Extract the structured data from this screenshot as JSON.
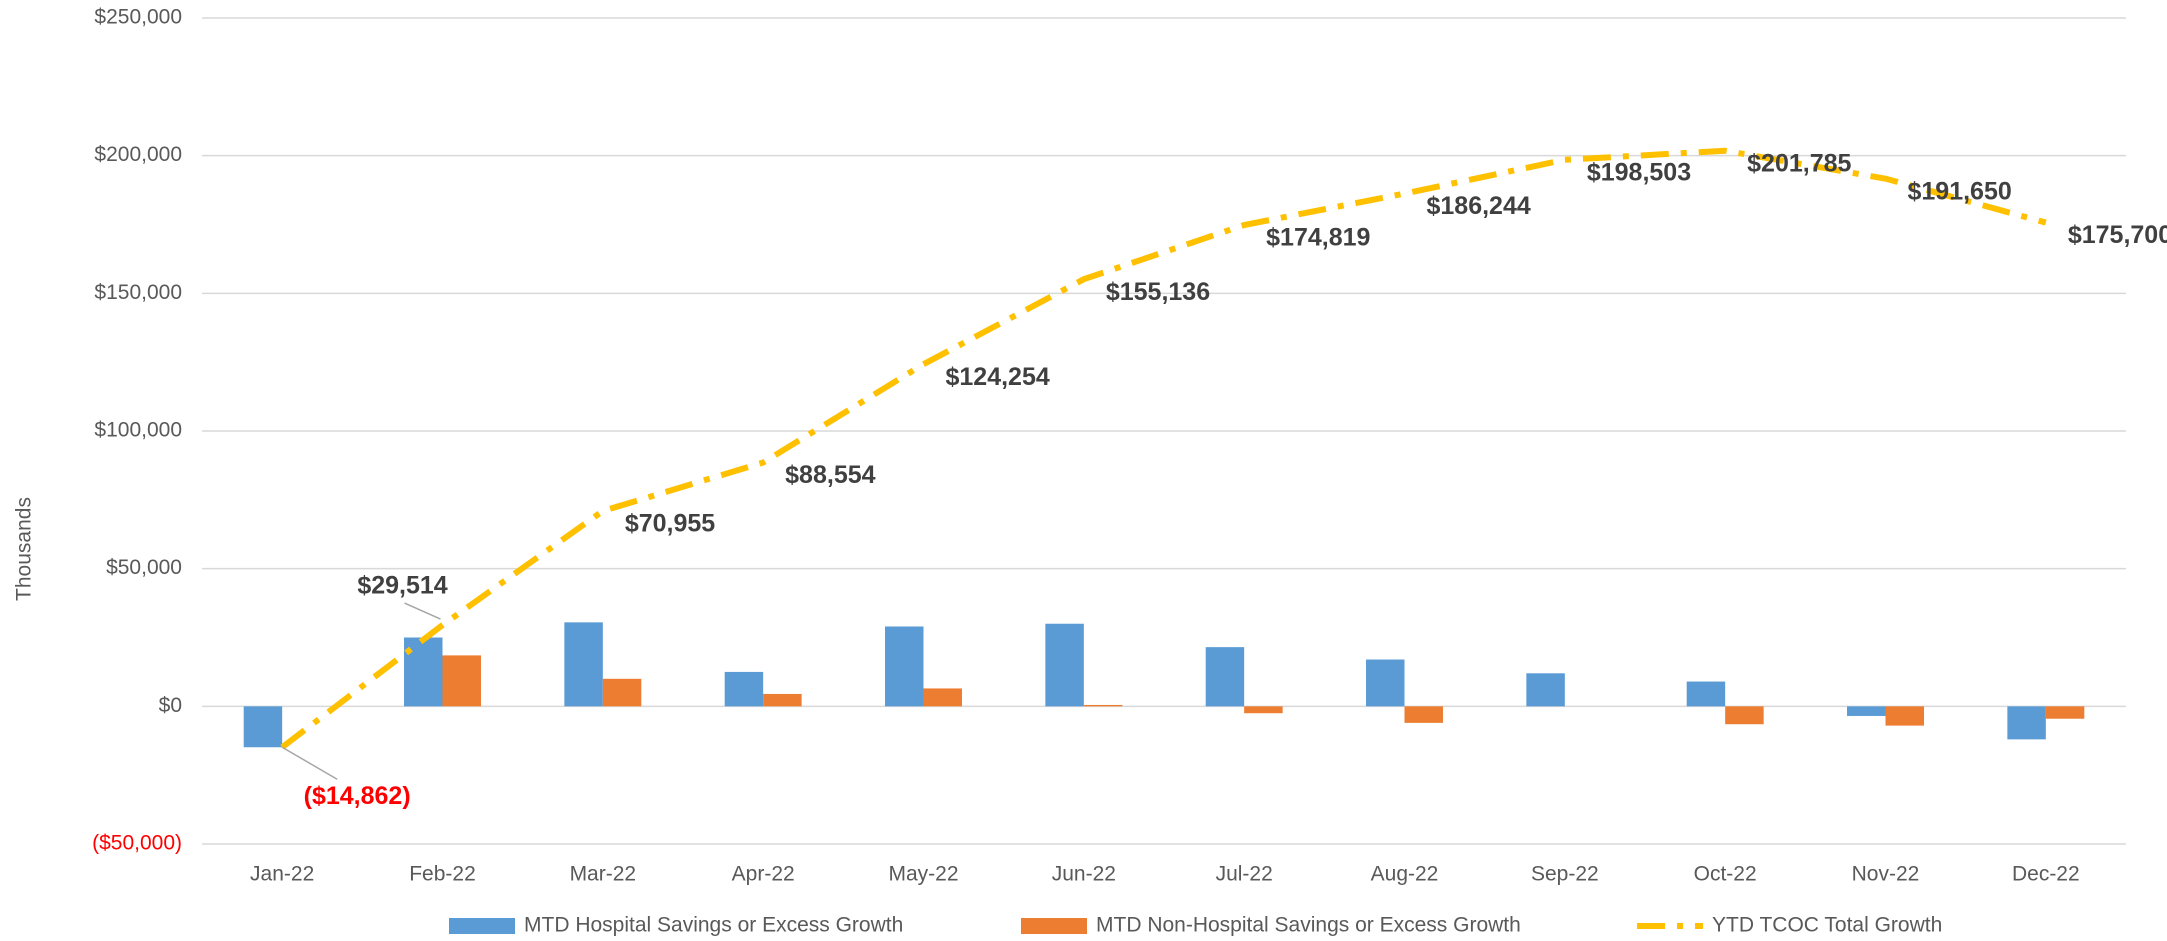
{
  "chart_data": {
    "type": "bar",
    "y_axis_label": "Thousands",
    "categories": [
      "Jan-22",
      "Feb-22",
      "Mar-22",
      "Apr-22",
      "May-22",
      "Jun-22",
      "Jul-22",
      "Aug-22",
      "Sep-22",
      "Oct-22",
      "Nov-22",
      "Dec-22"
    ],
    "series": [
      {
        "name": "MTD Hospital Savings or Excess Growth",
        "type": "bar",
        "color": "#5B9BD5",
        "values": [
          -14862,
          25000,
          30500,
          12500,
          29000,
          30000,
          21500,
          17000,
          12000,
          9000,
          -3500,
          -12000
        ]
      },
      {
        "name": "MTD Non-Hospital Savings or Excess Growth",
        "type": "bar",
        "color": "#ED7D31",
        "values": [
          0,
          18500,
          10000,
          4500,
          6500,
          500,
          -2500,
          -6000,
          0,
          -6500,
          -7000,
          -4500
        ]
      },
      {
        "name": "YTD TCOC Total Growth",
        "type": "line",
        "color": "#FFC000",
        "values": [
          -14862,
          29514,
          70955,
          88554,
          124254,
          155136,
          174819,
          186244,
          198503,
          201785,
          191650,
          175700
        ],
        "value_labels": [
          "($14,862)",
          "$29,514",
          "$70,955",
          "$88,554",
          "$124,254",
          "$155,136",
          "$174,819",
          "$186,244",
          "$198,503",
          "$201,785",
          "$191,650",
          "$175,700"
        ]
      }
    ],
    "ylim": [
      -50000,
      250000
    ],
    "yticks": [
      {
        "value": -50000,
        "label": "($50,000)"
      },
      {
        "value": 0,
        "label": "$0"
      },
      {
        "value": 50000,
        "label": "$50,000"
      },
      {
        "value": 100000,
        "label": "$100,000"
      },
      {
        "value": 150000,
        "label": "$150,000"
      },
      {
        "value": 200000,
        "label": "$200,000"
      },
      {
        "value": 250000,
        "label": "$250,000"
      }
    ],
    "grid": true,
    "legend": "bottom",
    "negative_label_color": "#FF0000"
  }
}
